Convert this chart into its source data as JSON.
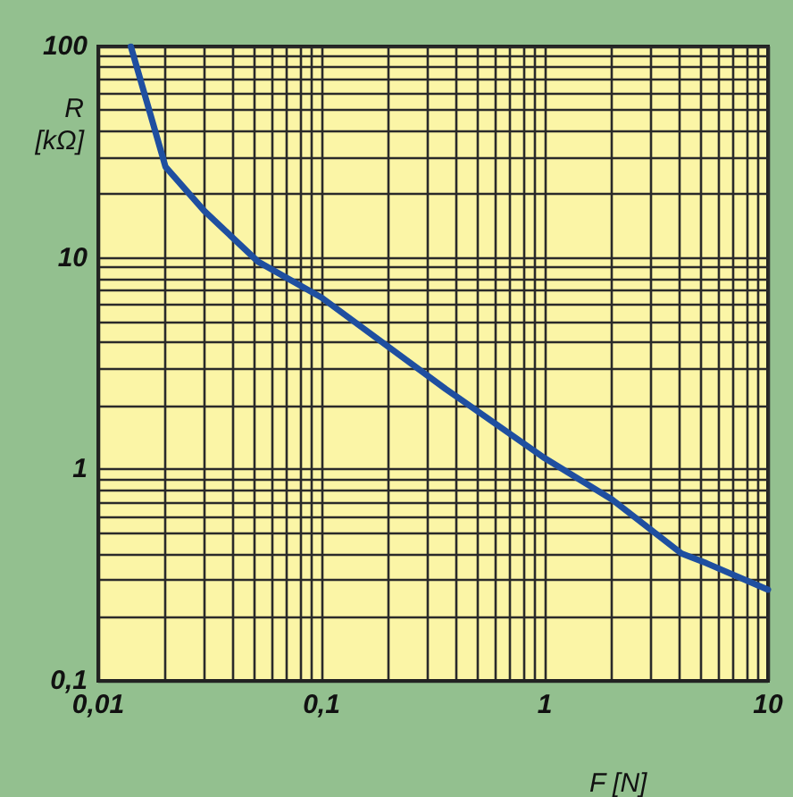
{
  "chart_data": {
    "type": "line",
    "xlabel": "F [N]",
    "ylabel": "R [kΩ]",
    "log": "xy",
    "grid": true,
    "marker": "none",
    "line_style": "solid",
    "x": [
      0.014,
      0.02,
      0.03,
      0.052,
      0.1,
      0.36,
      1,
      2,
      4.1,
      5.3,
      10
    ],
    "series": [
      {
        "color": "#1f4fa0",
        "values": [
          100,
          27,
          16.6,
          9.6,
          6.5,
          2.4,
          1.13,
          0.72,
          0.4,
          0.36,
          0.27
        ]
      }
    ],
    "xlim": [
      0.01,
      10
    ],
    "ylim": [
      0.1,
      100
    ],
    "xticks": [
      {
        "value": 0.01,
        "label": "0,01"
      },
      {
        "value": 0.02,
        "label": null
      },
      {
        "value": 0.03,
        "label": null
      },
      {
        "value": 0.04,
        "label": null
      },
      {
        "value": 0.05,
        "label": null
      },
      {
        "value": 0.06,
        "label": null
      },
      {
        "value": 0.07,
        "label": null
      },
      {
        "value": 0.08,
        "label": null
      },
      {
        "value": 0.09,
        "label": null
      },
      {
        "value": 0.1,
        "label": "0,1"
      },
      {
        "value": 0.2,
        "label": null
      },
      {
        "value": 0.3,
        "label": null
      },
      {
        "value": 0.4,
        "label": null
      },
      {
        "value": 0.5,
        "label": null
      },
      {
        "value": 0.6,
        "label": null
      },
      {
        "value": 0.7,
        "label": null
      },
      {
        "value": 0.8,
        "label": null
      },
      {
        "value": 0.9,
        "label": null
      },
      {
        "value": 1,
        "label": "1"
      },
      {
        "value": 2,
        "label": null
      },
      {
        "value": 3,
        "label": null
      },
      {
        "value": 4,
        "label": null
      },
      {
        "value": 5,
        "label": null
      },
      {
        "value": 6,
        "label": null
      },
      {
        "value": 7,
        "label": null
      },
      {
        "value": 8,
        "label": null
      },
      {
        "value": 9,
        "label": null
      },
      {
        "value": 10,
        "label": "10"
      }
    ],
    "yticks": [
      {
        "value": 0.1,
        "label": "0,1"
      },
      {
        "value": 0.2,
        "label": null
      },
      {
        "value": 0.3,
        "label": null
      },
      {
        "value": 0.4,
        "label": null
      },
      {
        "value": 0.5,
        "label": null
      },
      {
        "value": 0.6,
        "label": null
      },
      {
        "value": 0.7,
        "label": null
      },
      {
        "value": 0.8,
        "label": null
      },
      {
        "value": 0.9,
        "label": null
      },
      {
        "value": 1,
        "label": "1"
      },
      {
        "value": 2,
        "label": null
      },
      {
        "value": 3,
        "label": null
      },
      {
        "value": 4,
        "label": null
      },
      {
        "value": 5,
        "label": null
      },
      {
        "value": 6,
        "label": null
      },
      {
        "value": 7,
        "label": null
      },
      {
        "value": 8,
        "label": null
      },
      {
        "value": 9,
        "label": null
      },
      {
        "value": 10,
        "label": "10"
      },
      {
        "value": 20,
        "label": null
      },
      {
        "value": 30,
        "label": null
      },
      {
        "value": 40,
        "label": null
      },
      {
        "value": 50,
        "label": null
      },
      {
        "value": 60,
        "label": null
      },
      {
        "value": 70,
        "label": null
      },
      {
        "value": 80,
        "label": null
      },
      {
        "value": 90,
        "label": null
      },
      {
        "value": 100,
        "label": "100"
      }
    ]
  }
}
